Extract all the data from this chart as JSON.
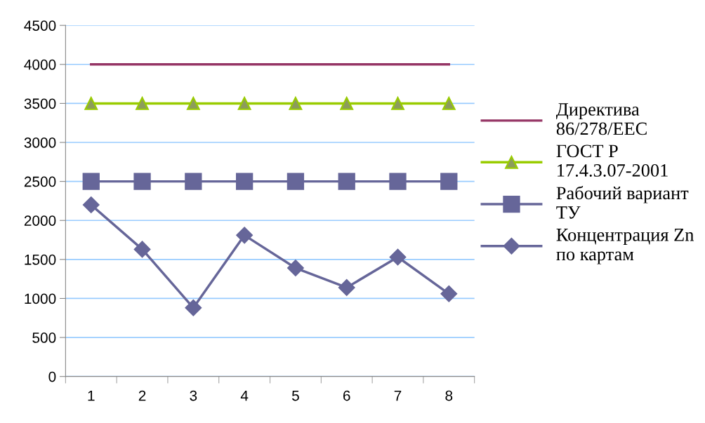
{
  "chart_data": {
    "type": "line",
    "categories": [
      "1",
      "2",
      "3",
      "4",
      "5",
      "6",
      "7",
      "8"
    ],
    "series": [
      {
        "name": "Директива 86/278/EEC",
        "color": "#953565",
        "marker": "none",
        "values": [
          4000,
          4000,
          4000,
          4000,
          4000,
          4000,
          4000,
          4000
        ]
      },
      {
        "name": "ГОСТ Р 17.4.3.07-2001",
        "color": "#99cc00",
        "marker": "triangle",
        "values": [
          3500,
          3500,
          3500,
          3500,
          3500,
          3500,
          3500,
          3500
        ]
      },
      {
        "name": "Рабочий вариант ТУ",
        "color": "#666699",
        "marker": "square",
        "values": [
          2500,
          2500,
          2500,
          2500,
          2500,
          2500,
          2500,
          2500
        ]
      },
      {
        "name": "Концентрация Zn по картам",
        "color": "#666699",
        "marker": "diamond",
        "values": [
          2200,
          1630,
          880,
          1810,
          1390,
          1140,
          1530,
          1060
        ]
      }
    ],
    "ylim": [
      0,
      4500
    ],
    "yticks": [
      0,
      500,
      1000,
      1500,
      2000,
      2500,
      3000,
      3500,
      4000,
      4500
    ],
    "grid": "y",
    "legend": "right",
    "line_style": "solid"
  }
}
